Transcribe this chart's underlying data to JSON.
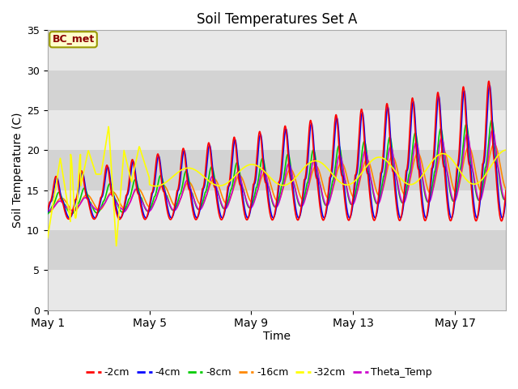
{
  "title": "Soil Temperatures Set A",
  "xlabel": "Time",
  "ylabel": "Soil Temperature (C)",
  "ylim": [
    0,
    35
  ],
  "annotation_text": "BC_met",
  "legend_entries": [
    "-2cm",
    "-4cm",
    "-8cm",
    "-16cm",
    "-32cm",
    "Theta_Temp"
  ],
  "legend_colors": [
    "#ff0000",
    "#0000ff",
    "#00cc00",
    "#ff8800",
    "#ffff00",
    "#cc00cc"
  ],
  "xtick_labels": [
    "May 1",
    "May 5",
    "May 9",
    "May 13",
    "May 17"
  ],
  "xtick_positions": [
    0,
    4,
    8,
    12,
    16
  ],
  "ytick_positions": [
    0,
    5,
    10,
    15,
    20,
    25,
    30,
    35
  ],
  "band_colors": [
    "#e8e8e8",
    "#d0d0d0"
  ],
  "grid_color": "#c0c0c0"
}
